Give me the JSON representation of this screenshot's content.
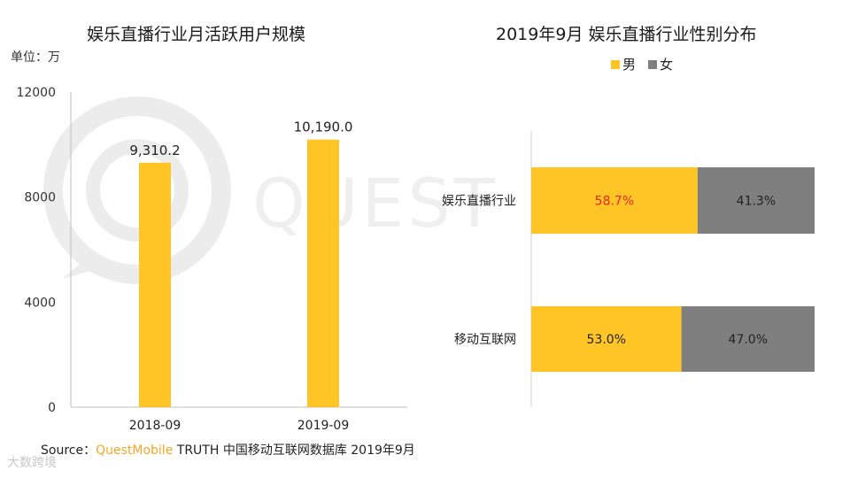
{
  "unit_label": "单位：万",
  "chart_data": [
    {
      "type": "bar",
      "title": "娱乐直播行业月活跃用户规模",
      "categories": [
        "2018-09",
        "2019-09"
      ],
      "values": [
        9310.2,
        10190.0
      ],
      "value_labels": [
        "9,310.2",
        "10,190.0"
      ],
      "yticks": [
        0,
        4000,
        8000,
        12000
      ],
      "ylim": [
        0,
        12000
      ],
      "xlabel": "",
      "ylabel": "",
      "color": "#FFC526",
      "grid": false
    },
    {
      "type": "bar",
      "orientation": "horizontal",
      "stacked": true,
      "title": "2019年9月 娱乐直播行业性别分布",
      "categories": [
        "娱乐直播行业",
        "移动互联网"
      ],
      "series": [
        {
          "name": "男",
          "values": [
            58.7,
            53.0
          ],
          "labels": [
            "58.7%",
            "53.0%"
          ],
          "color": "#FFC526"
        },
        {
          "name": "女",
          "values": [
            41.3,
            47.0
          ],
          "labels": [
            "41.3%",
            "47.0%"
          ],
          "color": "#7F7F7F"
        }
      ],
      "highlight_label_color": "#E8251E",
      "xlim": [
        0,
        100
      ],
      "legend_position": "top",
      "grid": false
    }
  ],
  "source": {
    "prefix": "Source：",
    "brand": "QuestMobile",
    "rest": " TRUTH 中国移动互联网数据库 2019年9月"
  },
  "watermark": {
    "text": "QUEST"
  },
  "footer_mark": "大数跨境"
}
